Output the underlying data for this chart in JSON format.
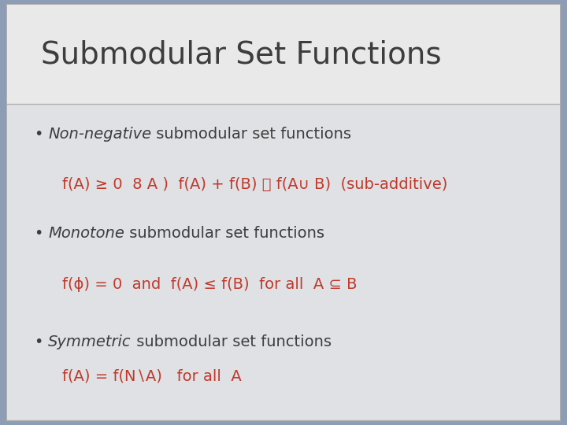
{
  "title": "Submodular Set Functions",
  "title_color": "#3d3d3d",
  "title_fontsize": 28,
  "bg_outer": "#8c9db5",
  "bg_title": "#e9e9e9",
  "bg_content": "#dfe1e5",
  "border_color": "#b0b0b0",
  "bullet_color": "#3d3d3d",
  "red_color": "#c0392b",
  "black_color": "#3d3d3d",
  "content_fontsize": 14,
  "formula_fontsize": 14,
  "items": [
    {
      "label_italic": "Non-negative",
      "label_rest": " submodular set functions",
      "formula": "f(A) ≥ 0  8 A )  f(A) + f(B) ， f(A∪ B)  (sub-additive)"
    },
    {
      "label_italic": "Monotone",
      "label_rest": " submodular set functions",
      "formula": "f(ϕ) = 0  and  f(A) ≤ f(B)  for all  A ⊆ B"
    },
    {
      "label_italic": "Symmetric",
      "label_rest": " submodular set functions",
      "formula": "f(A) = f(N∖A)   for all  A"
    }
  ]
}
